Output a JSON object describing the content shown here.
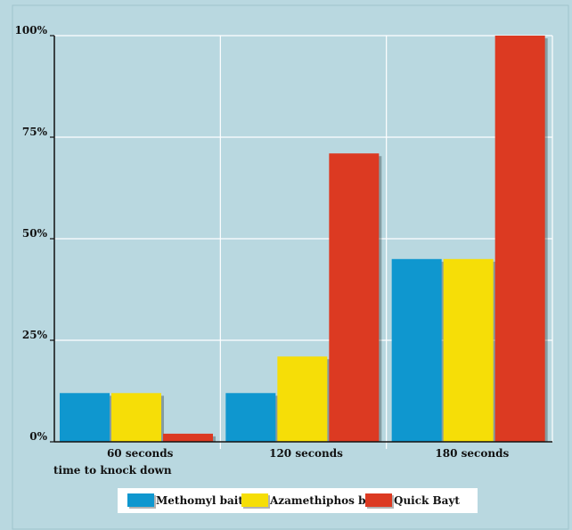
{
  "chart_data": {
    "type": "bar",
    "categories": [
      "60 seconds",
      "120 seconds",
      "180 seconds"
    ],
    "xlabel": "time to knock down",
    "ylabel": "",
    "ylim": [
      0,
      100
    ],
    "yticks": [
      0,
      25,
      50,
      75,
      100
    ],
    "ytick_labels": [
      "0%",
      "25%",
      "50%",
      "75%",
      "100%"
    ],
    "series": [
      {
        "name": "Methomyl bait",
        "color": "#0f97cf",
        "values": [
          12,
          12,
          45
        ]
      },
      {
        "name": "Azamethiphos bait",
        "color": "#f6de07",
        "values": [
          12,
          21,
          45
        ]
      },
      {
        "name": "Quick Bayt",
        "color": "#dc3a22",
        "values": [
          2,
          71,
          100
        ]
      }
    ],
    "grid": true,
    "legend_position": "bottom"
  }
}
